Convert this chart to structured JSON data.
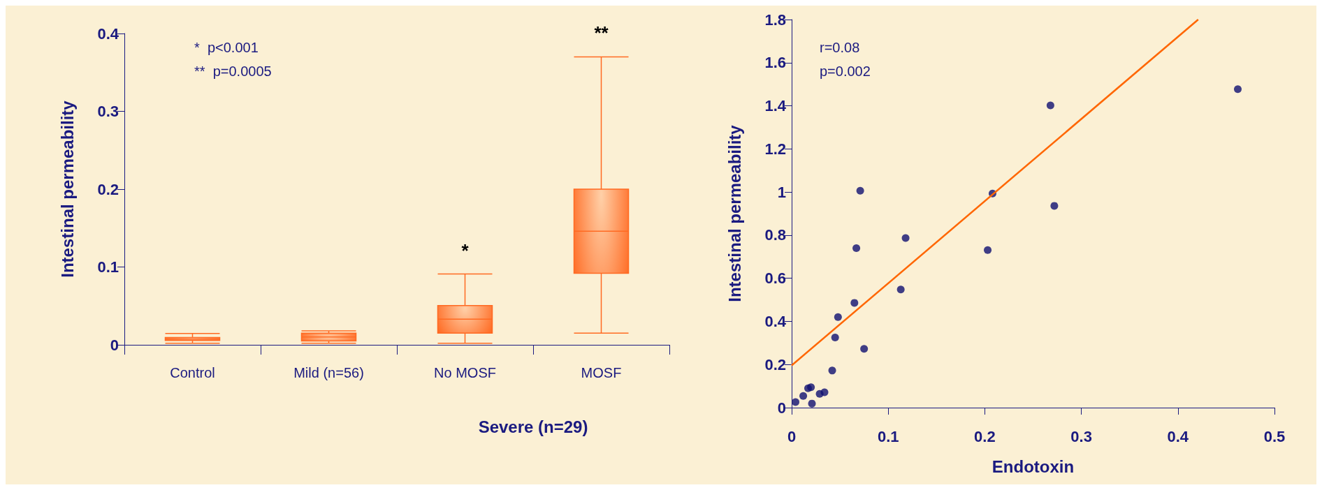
{
  "chart_data": [
    {
      "type": "box",
      "ylabel": "Intestinal permeability",
      "xlabel": "Severe (n=29)",
      "categories": [
        "Control",
        "Mild (n=56)",
        "No MOSF",
        "MOSF"
      ],
      "color": "#ff6a22",
      "boxes": [
        {
          "low": 0.002,
          "q1": 0.0057,
          "median": 0.0075,
          "q3": 0.0094,
          "high": 0.0146
        },
        {
          "low": 0.002,
          "q1": 0.005,
          "median": 0.01,
          "q3": 0.015,
          "high": 0.018
        },
        {
          "low": 0.002,
          "q1": 0.015,
          "median": 0.033,
          "q3": 0.0505,
          "high": 0.091
        },
        {
          "low": 0.015,
          "q1": 0.092,
          "median": 0.146,
          "q3": 0.2,
          "high": 0.37
        }
      ],
      "ylim": [
        0,
        0.4
      ],
      "yticks": [
        0,
        0.1,
        0.2,
        0.3,
        0.4
      ],
      "grid": false,
      "annotations": [
        "*  p<0.001",
        "**  p=0.0005",
        "*",
        "**"
      ]
    },
    {
      "type": "scatter",
      "xlabel": "Endotoxin",
      "ylabel": "Intestinal permeability",
      "grid": false,
      "marker": "circle",
      "xlim": [
        0,
        0.5
      ],
      "xticks": [
        0,
        0.1,
        0.2,
        0.3,
        0.4,
        0.5
      ],
      "ylim": [
        0,
        1.8
      ],
      "yticks": [
        0,
        0.2,
        0.4,
        0.6,
        0.8,
        1,
        1.2,
        1.4,
        1.6,
        1.8
      ],
      "series": [
        {
          "color": "#101070",
          "x": [
            0.004,
            0.012,
            0.017,
            0.02,
            0.021,
            0.029,
            0.034,
            0.042,
            0.045,
            0.048,
            0.065,
            0.067,
            0.071,
            0.075,
            0.113,
            0.118,
            0.203,
            0.208,
            0.268,
            0.272,
            0.462
          ],
          "values": [
            0.026,
            0.054,
            0.09,
            0.095,
            0.019,
            0.064,
            0.071,
            0.172,
            0.325,
            0.42,
            0.486,
            0.74,
            1.006,
            0.273,
            0.548,
            0.787,
            0.731,
            0.993,
            1.402,
            0.936,
            1.477
          ]
        },
        {
          "type": "line",
          "marker": "none",
          "color": "#ff6600",
          "x": [
            0,
            0.421
          ],
          "values": [
            0.196,
            1.8
          ]
        }
      ],
      "annotations": [
        "r=0.08",
        "p=0.002"
      ]
    }
  ]
}
